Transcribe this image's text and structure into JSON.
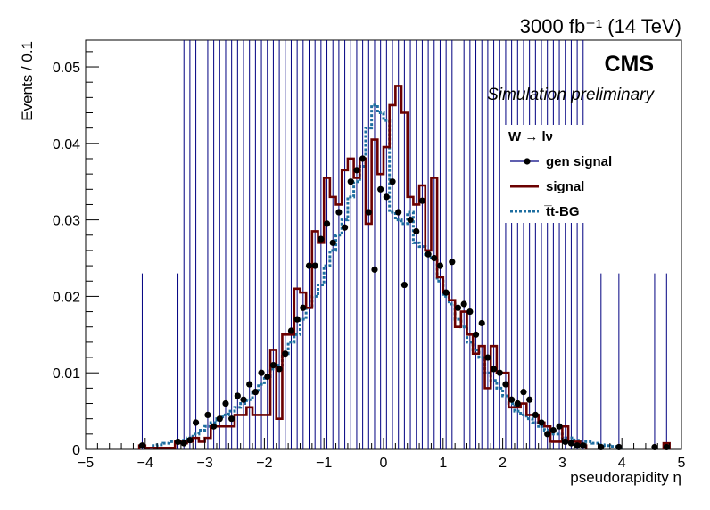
{
  "chart_data": {
    "type": "line",
    "title": "",
    "lumi_label": "3000 fb⁻¹ (14 TeV)",
    "experiment_label": "CMS",
    "sub_label": "Simulation preliminary",
    "xlabel": "pseudorapidity η",
    "ylabel": "Events / 0.1",
    "xlim": [
      -5,
      5
    ],
    "ylim": [
      0,
      0.0535
    ],
    "x_ticks": [
      -5,
      -4,
      -3,
      -2,
      -1,
      0,
      1,
      2,
      3,
      4,
      5
    ],
    "x_tick_labels": [
      "−5",
      "−4",
      "−3",
      "−2",
      "−1",
      "0",
      "1",
      "2",
      "3",
      "4",
      "5"
    ],
    "y_ticks": [
      0,
      0.01,
      0.02,
      0.03,
      0.04,
      0.05
    ],
    "y_tick_labels": [
      "0",
      "0.01",
      "0.02",
      "0.03",
      "0.04",
      "0.05"
    ],
    "grid": false,
    "legend": {
      "placement": "top-right",
      "title": "W  → lν",
      "entries": [
        "gen signal",
        "signal",
        "t̅t-BG"
      ]
    },
    "bin_width": 0.1,
    "series": [
      {
        "name": "gen signal",
        "style": "points-with-error-bars",
        "color": "#000000",
        "error_color": "#000080",
        "x": [
          -4.05,
          -3.45,
          -3.35,
          -3.25,
          -3.15,
          -2.95,
          -2.85,
          -2.75,
          -2.65,
          -2.55,
          -2.45,
          -2.35,
          -2.25,
          -2.15,
          -2.05,
          -1.95,
          -1.85,
          -1.75,
          -1.65,
          -1.55,
          -1.45,
          -1.35,
          -1.25,
          -1.15,
          -1.05,
          -0.95,
          -0.85,
          -0.75,
          -0.65,
          -0.55,
          -0.45,
          -0.35,
          -0.25,
          -0.15,
          -0.05,
          0.05,
          0.15,
          0.25,
          0.35,
          0.45,
          0.55,
          0.65,
          0.75,
          0.85,
          0.95,
          1.05,
          1.15,
          1.25,
          1.35,
          1.45,
          1.55,
          1.65,
          1.75,
          1.85,
          1.95,
          2.05,
          2.15,
          2.25,
          2.35,
          2.45,
          2.55,
          2.65,
          2.75,
          2.85,
          2.95,
          3.05,
          3.15,
          3.25,
          3.35,
          3.65,
          3.95,
          4.55,
          4.75
        ],
        "y": [
          0.0005,
          0.001,
          0.0008,
          0.0012,
          0.0035,
          0.0045,
          0.003,
          0.004,
          0.006,
          0.004,
          0.007,
          0.0065,
          0.0085,
          0.0075,
          0.01,
          0.0095,
          0.011,
          0.0105,
          0.0125,
          0.0155,
          0.017,
          0.0185,
          0.024,
          0.024,
          0.0275,
          0.0295,
          0.027,
          0.031,
          0.029,
          0.035,
          0.0365,
          0.038,
          0.031,
          0.0235,
          0.034,
          0.033,
          0.035,
          0.031,
          0.0215,
          0.03,
          0.0285,
          0.0325,
          0.0255,
          0.025,
          0.024,
          0.0205,
          0.0245,
          0.0185,
          0.019,
          0.018,
          0.015,
          0.0165,
          0.012,
          0.0105,
          0.01,
          0.0085,
          0.0065,
          0.006,
          0.0075,
          0.0065,
          0.0045,
          0.0035,
          0.002,
          0.0025,
          0.003,
          0.001,
          0.0008,
          0.0005,
          0.0005,
          0.0003,
          0.0003,
          0.0003,
          0.0003
        ]
      },
      {
        "name": "signal",
        "style": "solid-step",
        "color": "#6b0000",
        "x": [
          -4.05,
          -3.95,
          -3.85,
          -3.75,
          -3.65,
          -3.55,
          -3.45,
          -3.35,
          -3.25,
          -3.15,
          -3.05,
          -2.95,
          -2.85,
          -2.75,
          -2.65,
          -2.55,
          -2.45,
          -2.35,
          -2.25,
          -2.15,
          -2.05,
          -1.95,
          -1.85,
          -1.75,
          -1.65,
          -1.55,
          -1.45,
          -1.35,
          -1.25,
          -1.15,
          -1.05,
          -0.95,
          -0.85,
          -0.75,
          -0.65,
          -0.55,
          -0.45,
          -0.35,
          -0.25,
          -0.15,
          -0.05,
          0.05,
          0.15,
          0.25,
          0.35,
          0.45,
          0.55,
          0.65,
          0.75,
          0.85,
          0.95,
          1.05,
          1.15,
          1.25,
          1.35,
          1.45,
          1.55,
          1.65,
          1.75,
          1.85,
          1.95,
          2.05,
          2.15,
          2.25,
          2.35,
          2.45,
          2.55,
          2.65,
          2.75,
          2.85,
          2.95,
          3.05,
          3.15,
          3.25,
          3.35,
          4.75
        ],
        "y": [
          0.0005,
          0.0002,
          0.0002,
          0.0002,
          0.0002,
          0.0002,
          0.001,
          0.0008,
          0.001,
          0.0015,
          0.001,
          0.0015,
          0.003,
          0.003,
          0.003,
          0.003,
          0.0045,
          0.0045,
          0.0055,
          0.0045,
          0.0045,
          0.0045,
          0.013,
          0.004,
          0.015,
          0.015,
          0.021,
          0.0205,
          0.0185,
          0.0285,
          0.027,
          0.0355,
          0.033,
          0.032,
          0.0365,
          0.038,
          0.0355,
          0.038,
          0.0295,
          0.0405,
          0.036,
          0.0395,
          0.045,
          0.0475,
          0.044,
          0.033,
          0.032,
          0.0345,
          0.026,
          0.0355,
          0.0225,
          0.0205,
          0.0195,
          0.016,
          0.018,
          0.015,
          0.0125,
          0.0135,
          0.008,
          0.0135,
          0.01,
          0.01,
          0.0055,
          0.0055,
          0.006,
          0.0045,
          0.0045,
          0.0035,
          0.003,
          0.001,
          0.001,
          0.003,
          0.001,
          0.001,
          0.0005,
          0.0008
        ]
      },
      {
        "name": "t̅t-BG",
        "style": "dotted-step",
        "color": "#1e6ea0",
        "x": [
          -3.85,
          -3.75,
          -3.65,
          -3.55,
          -3.45,
          -3.35,
          -3.25,
          -3.15,
          -3.05,
          -2.95,
          -2.85,
          -2.75,
          -2.65,
          -2.55,
          -2.45,
          -2.35,
          -2.25,
          -2.15,
          -2.05,
          -1.95,
          -1.85,
          -1.75,
          -1.65,
          -1.55,
          -1.45,
          -1.35,
          -1.25,
          -1.15,
          -1.05,
          -0.95,
          -0.85,
          -0.75,
          -0.65,
          -0.55,
          -0.45,
          -0.35,
          -0.25,
          -0.15,
          -0.05,
          0.05,
          0.15,
          0.25,
          0.35,
          0.45,
          0.55,
          0.65,
          0.75,
          0.85,
          0.95,
          1.05,
          1.15,
          1.25,
          1.35,
          1.45,
          1.55,
          1.65,
          1.75,
          1.85,
          1.95,
          2.05,
          2.15,
          2.25,
          2.35,
          2.45,
          2.55,
          2.65,
          2.75,
          2.85,
          2.95,
          3.05,
          3.15,
          3.25,
          3.35,
          3.45,
          3.55,
          3.65,
          3.75,
          3.85,
          3.95
        ],
        "y": [
          0.0005,
          0.0006,
          0.0008,
          0.001,
          0.001,
          0.0012,
          0.0015,
          0.002,
          0.0025,
          0.003,
          0.0035,
          0.004,
          0.0045,
          0.005,
          0.0055,
          0.006,
          0.0065,
          0.0075,
          0.0085,
          0.0095,
          0.0105,
          0.011,
          0.0125,
          0.014,
          0.015,
          0.017,
          0.0185,
          0.02,
          0.0215,
          0.024,
          0.026,
          0.028,
          0.03,
          0.033,
          0.035,
          0.037,
          0.042,
          0.045,
          0.044,
          0.043,
          0.031,
          0.03,
          0.0295,
          0.031,
          0.027,
          0.0265,
          0.0255,
          0.025,
          0.022,
          0.02,
          0.019,
          0.017,
          0.016,
          0.014,
          0.013,
          0.012,
          0.01,
          0.009,
          0.008,
          0.007,
          0.006,
          0.005,
          0.0045,
          0.004,
          0.0035,
          0.003,
          0.0025,
          0.002,
          0.002,
          0.0015,
          0.0015,
          0.0012,
          0.001,
          0.001,
          0.0008,
          0.0006,
          0.0005,
          0.0004,
          0.0003
        ]
      }
    ]
  }
}
